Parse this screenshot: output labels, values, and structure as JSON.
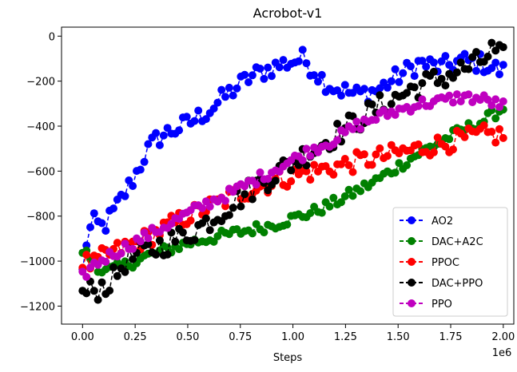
{
  "chart_data": {
    "type": "line",
    "title": "Acrobot-v1",
    "xlabel": "Steps",
    "ylabel": "",
    "x_offset_label": "1e6",
    "xlim": [
      -0.1,
      2.05
    ],
    "ylim": [
      -1280,
      40
    ],
    "x_ticks": [
      0.0,
      0.25,
      0.5,
      0.75,
      1.0,
      1.25,
      1.5,
      1.75,
      2.0
    ],
    "x_tick_labels": [
      "0.00",
      "0.25",
      "0.50",
      "0.75",
      "1.00",
      "1.25",
      "1.50",
      "1.75",
      "2.00"
    ],
    "y_ticks": [
      0,
      -200,
      -400,
      -600,
      -800,
      -1000,
      -1200
    ],
    "y_tick_labels": [
      "0",
      "−200",
      "−400",
      "−600",
      "−800",
      "−1000",
      "−1200"
    ],
    "grid": false,
    "legend_position": "lower-right",
    "series": [
      {
        "name": "AO2",
        "color": "#0000ff",
        "anchors_x": [
          0.0,
          0.02,
          0.05,
          0.1,
          0.15,
          0.2,
          0.25,
          0.3,
          0.35,
          0.4,
          0.5,
          0.6,
          0.7,
          0.8,
          0.9,
          1.0,
          1.05,
          1.1,
          1.15,
          1.2,
          1.3,
          1.4,
          1.5,
          1.6,
          1.7,
          1.8,
          1.9,
          2.0
        ],
        "anchors_y": [
          -1050,
          -900,
          -830,
          -850,
          -780,
          -700,
          -620,
          -520,
          -460,
          -430,
          -390,
          -330,
          -250,
          -180,
          -140,
          -110,
          -100,
          -150,
          -200,
          -230,
          -260,
          -240,
          -180,
          -120,
          -140,
          -110,
          -120,
          -160
        ],
        "amplitude": 45
      },
      {
        "name": "DAC+A2C",
        "color": "#008000",
        "anchors_x": [
          0.0,
          0.05,
          0.1,
          0.2,
          0.3,
          0.4,
          0.5,
          0.6,
          0.7,
          0.8,
          0.9,
          1.0,
          1.1,
          1.2,
          1.3,
          1.4,
          1.5,
          1.6,
          1.7,
          1.8,
          1.9,
          2.0
        ],
        "anchors_y": [
          -950,
          -1000,
          -1050,
          -1020,
          -980,
          -950,
          -920,
          -900,
          -880,
          -860,
          -840,
          -810,
          -780,
          -740,
          -690,
          -640,
          -580,
          -520,
          -470,
          -420,
          -380,
          -320
        ],
        "amplitude": 25
      },
      {
        "name": "PPOC",
        "color": "#ff0000",
        "anchors_x": [
          0.0,
          0.05,
          0.1,
          0.2,
          0.3,
          0.4,
          0.5,
          0.6,
          0.7,
          0.8,
          0.9,
          1.0,
          1.1,
          1.2,
          1.3,
          1.4,
          1.5,
          1.6,
          1.7,
          1.8,
          1.9,
          2.0
        ],
        "anchors_y": [
          -1000,
          -1020,
          -980,
          -940,
          -900,
          -850,
          -800,
          -760,
          -720,
          -680,
          -650,
          -620,
          -600,
          -580,
          -560,
          -540,
          -520,
          -500,
          -480,
          -460,
          -440,
          -440
        ],
        "amplitude": 45
      },
      {
        "name": "DAC+PPO",
        "color": "#000000",
        "anchors_x": [
          0.0,
          0.05,
          0.1,
          0.15,
          0.2,
          0.3,
          0.4,
          0.5,
          0.6,
          0.7,
          0.8,
          0.9,
          1.0,
          1.1,
          1.2,
          1.3,
          1.4,
          1.5,
          1.6,
          1.7,
          1.8,
          1.9,
          1.95,
          2.0
        ],
        "anchors_y": [
          -1150,
          -1130,
          -1110,
          -1080,
          -1000,
          -960,
          -920,
          -880,
          -820,
          -750,
          -680,
          -620,
          -560,
          -500,
          -440,
          -380,
          -320,
          -270,
          -220,
          -190,
          -150,
          -110,
          -60,
          -100
        ],
        "amplitude": 55
      },
      {
        "name": "PPO",
        "color": "#bf00bf",
        "anchors_x": [
          0.0,
          0.05,
          0.1,
          0.2,
          0.3,
          0.4,
          0.5,
          0.6,
          0.7,
          0.8,
          0.9,
          1.0,
          1.1,
          1.2,
          1.3,
          1.4,
          1.5,
          1.6,
          1.7,
          1.8,
          1.9,
          2.0
        ],
        "anchors_y": [
          -1070,
          -1020,
          -990,
          -940,
          -890,
          -840,
          -790,
          -740,
          -700,
          -650,
          -600,
          -550,
          -500,
          -460,
          -400,
          -360,
          -330,
          -300,
          -290,
          -270,
          -280,
          -310
        ],
        "amplitude": 25
      }
    ],
    "n_points": 110
  }
}
